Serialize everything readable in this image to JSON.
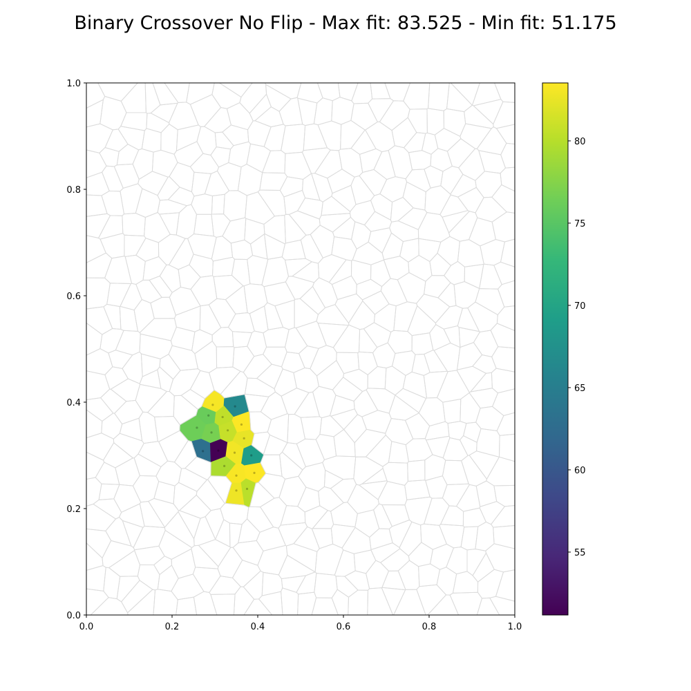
{
  "chart_data": {
    "type": "heatmap",
    "subtype": "voronoi-map",
    "title": "Binary Crossover No Flip - Max fit: 83.525 - Min fit: 51.175",
    "xlabel": "",
    "ylabel": "",
    "xlim": [
      0.0,
      1.0
    ],
    "ylim": [
      0.0,
      1.0
    ],
    "grid": false,
    "x_ticks": [
      "0.0",
      "0.2",
      "0.4",
      "0.6",
      "0.8",
      "1.0"
    ],
    "y_ticks": [
      "0.0",
      "0.2",
      "0.4",
      "0.6",
      "0.8",
      "1.0"
    ],
    "colorbar": {
      "colormap": "viridis",
      "range": [
        51.175,
        83.525
      ],
      "ticks": [
        "55",
        "60",
        "65",
        "70",
        "75",
        "80"
      ],
      "tick_values": [
        55,
        60,
        65,
        70,
        75,
        80
      ]
    },
    "background_cell_count": 600,
    "background_cell_color": "#dcdcdc",
    "cells": [
      {
        "x": 0.295,
        "y": 0.395,
        "value": 83.2
      },
      {
        "x": 0.347,
        "y": 0.392,
        "value": 66.5
      },
      {
        "x": 0.285,
        "y": 0.375,
        "value": 76.0
      },
      {
        "x": 0.318,
        "y": 0.372,
        "value": 80.5
      },
      {
        "x": 0.362,
        "y": 0.358,
        "value": 83.5
      },
      {
        "x": 0.258,
        "y": 0.352,
        "value": 76.3
      },
      {
        "x": 0.292,
        "y": 0.343,
        "value": 76.8
      },
      {
        "x": 0.33,
        "y": 0.347,
        "value": 80.8
      },
      {
        "x": 0.368,
        "y": 0.332,
        "value": 82.5
      },
      {
        "x": 0.272,
        "y": 0.308,
        "value": 63.0
      },
      {
        "x": 0.308,
        "y": 0.309,
        "value": 51.2
      },
      {
        "x": 0.346,
        "y": 0.305,
        "value": 83.0
      },
      {
        "x": 0.385,
        "y": 0.3,
        "value": 69.0
      },
      {
        "x": 0.322,
        "y": 0.28,
        "value": 79.5
      },
      {
        "x": 0.35,
        "y": 0.262,
        "value": 83.3
      },
      {
        "x": 0.392,
        "y": 0.267,
        "value": 83.5
      },
      {
        "x": 0.375,
        "y": 0.237,
        "value": 80.2
      },
      {
        "x": 0.35,
        "y": 0.234,
        "value": 82.8
      }
    ]
  }
}
